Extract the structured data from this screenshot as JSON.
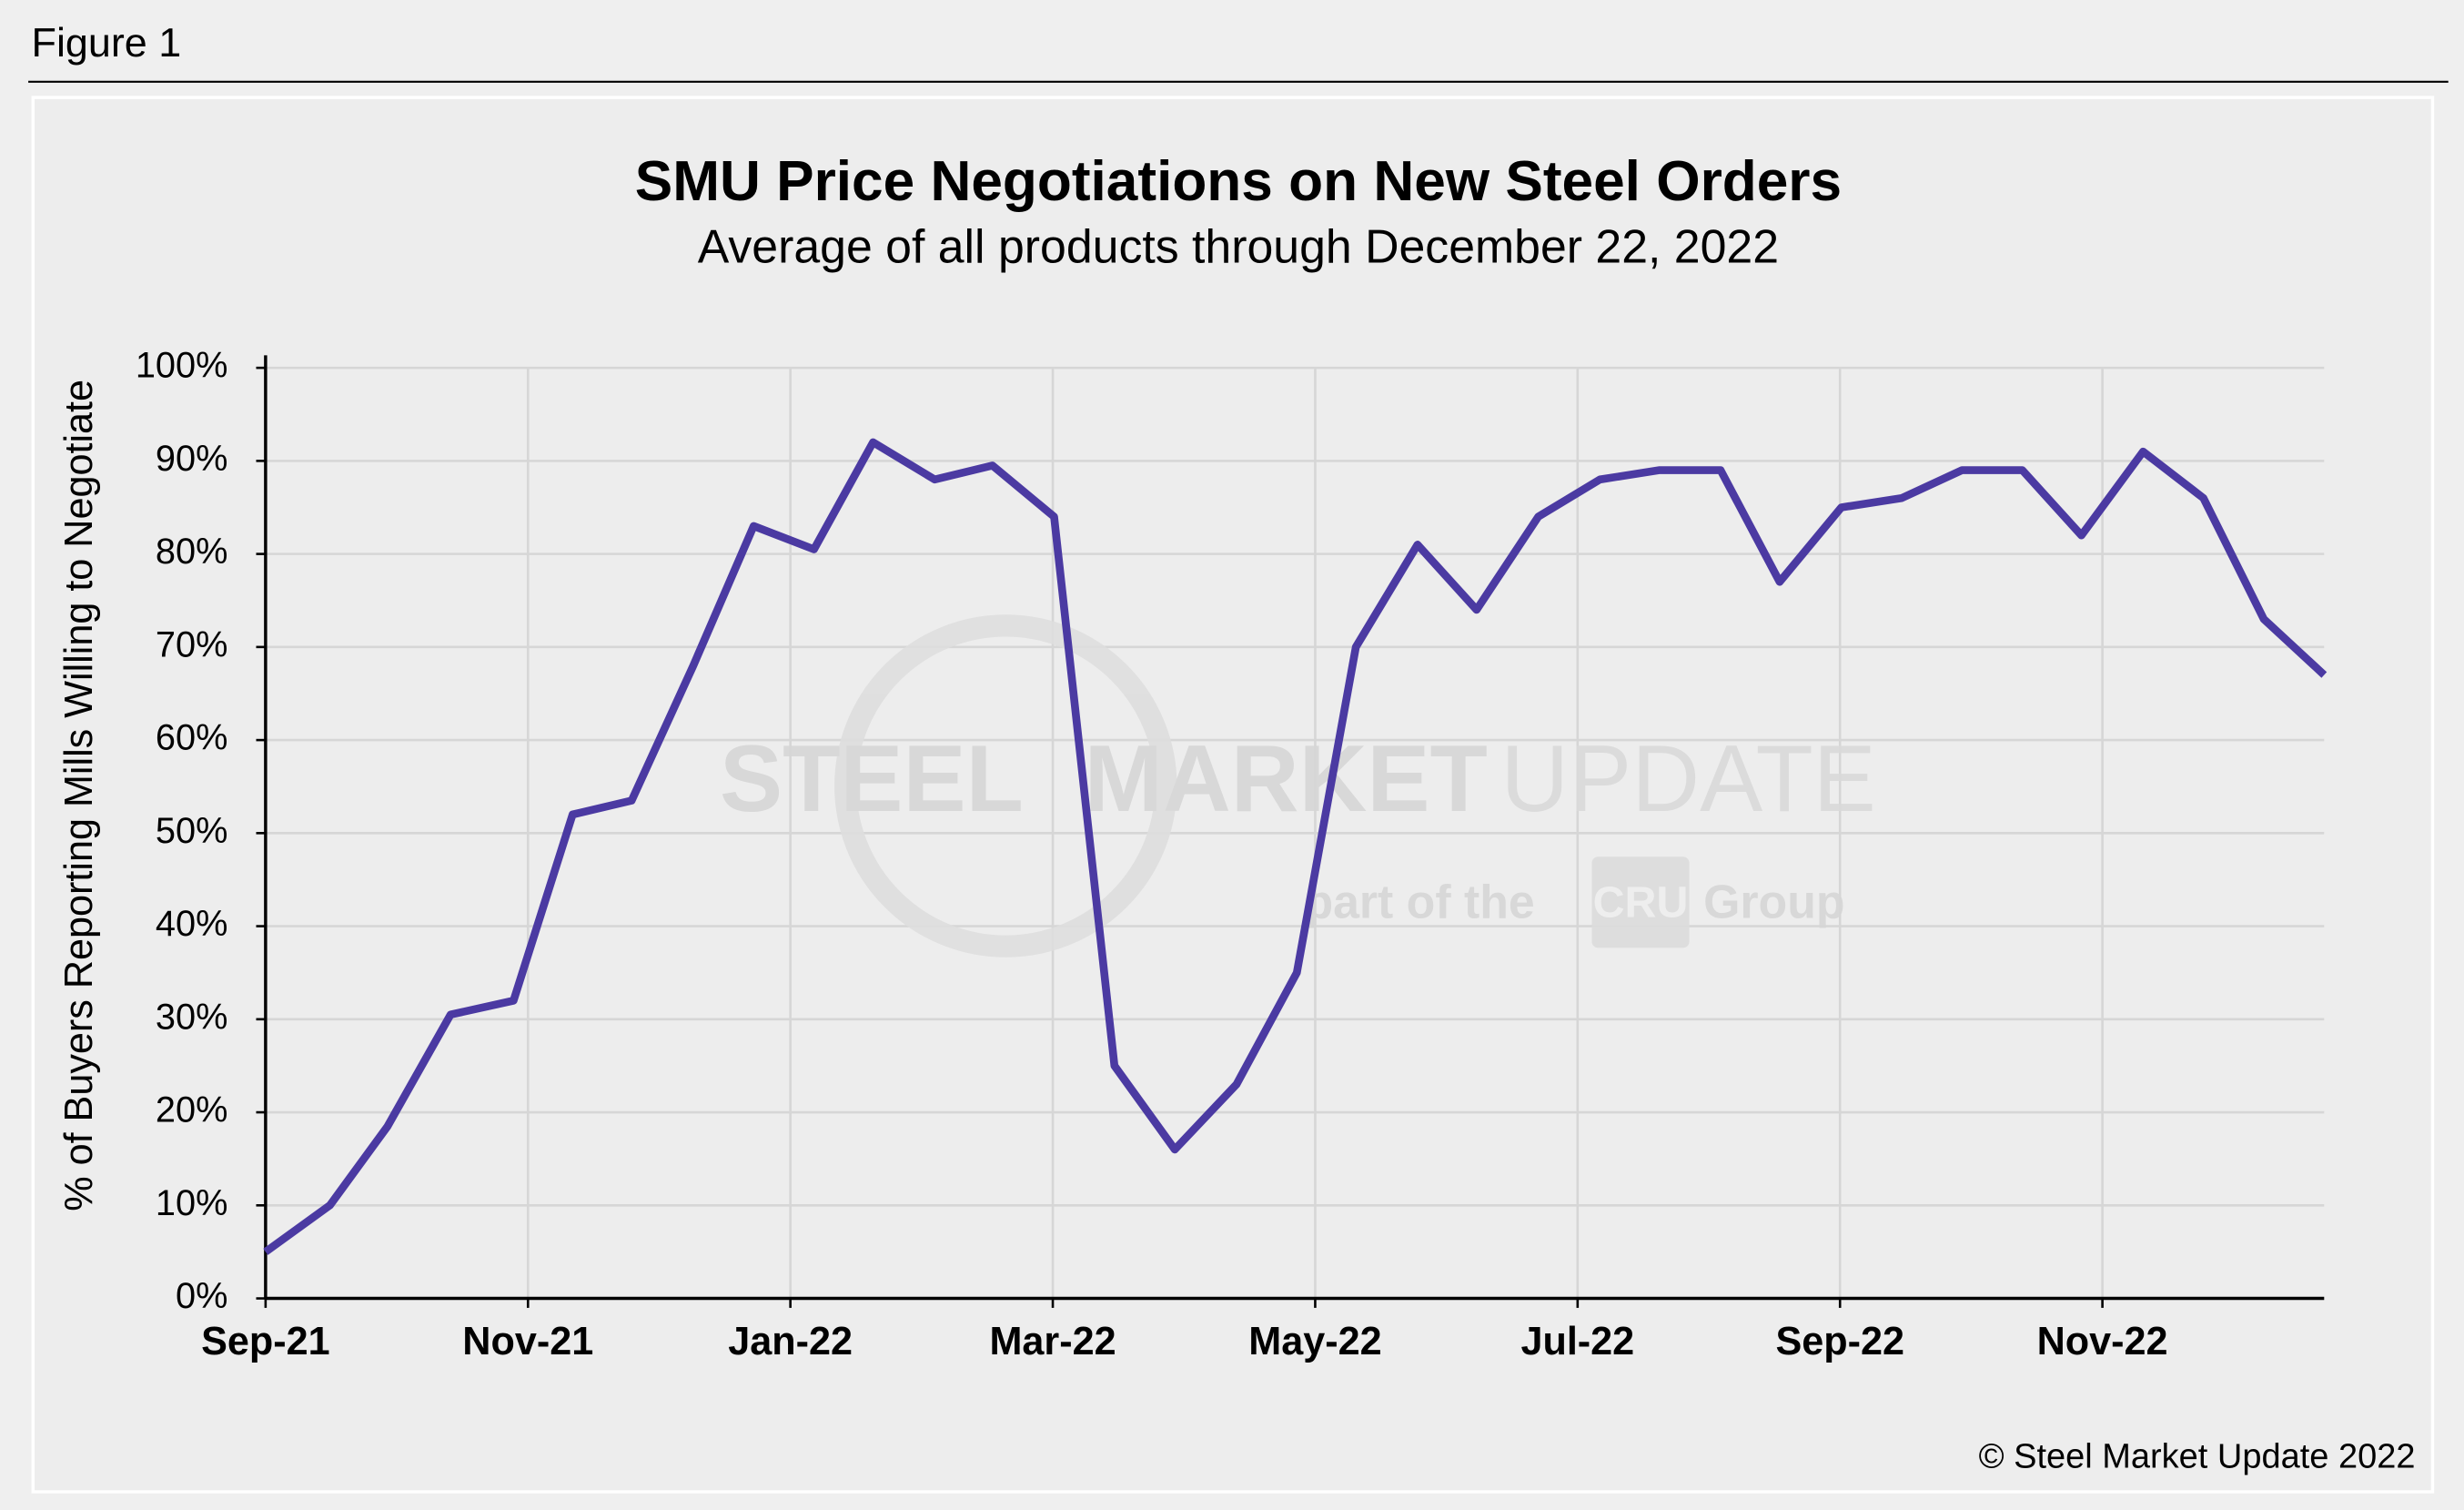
{
  "figure_label": "Figure 1",
  "chart_data": {
    "type": "line",
    "title": "SMU Price Negotiations on New Steel Orders",
    "subtitle": "Average of all products through December 22, 2022",
    "y_label": "% of Buyers Reporting Mills Willing to Negotiate",
    "watermark": [
      "STEEL",
      "MARKET",
      "UPDATE",
      "part of the",
      "CRU",
      "Group"
    ],
    "copyright": "© Steel Market Update 2022",
    "x": [
      0,
      0.49,
      0.93,
      1.41,
      1.89,
      2.34,
      2.79,
      3.26,
      3.72,
      4.18,
      4.63,
      5.1,
      5.54,
      6.01,
      6.47,
      6.93,
      7.4,
      7.86,
      8.31,
      8.78,
      9.23,
      9.7,
      10.17,
      10.62,
      11.09,
      11.54,
      12.01,
      12.47,
      12.93,
      13.39,
      13.84,
      14.31,
      14.77,
      15.23,
      15.69
    ],
    "series": [
      {
        "color": "#4b3aa2",
        "values": [
          5,
          10,
          18.5,
          30.5,
          32,
          52,
          53.5,
          68,
          83,
          80.5,
          92,
          88,
          89.5,
          84,
          25,
          16,
          23,
          35,
          70,
          81,
          74,
          84,
          88,
          89,
          89,
          77,
          85,
          86,
          89,
          89,
          82,
          91,
          86,
          73,
          67
        ]
      }
    ],
    "xlim": [
      0,
      15.69
    ],
    "xticks": [
      {
        "value": 0,
        "label": "Sep-21"
      },
      {
        "value": 2,
        "label": "Nov-21"
      },
      {
        "value": 4,
        "label": "Jan-22"
      },
      {
        "value": 6,
        "label": "Mar-22"
      },
      {
        "value": 8,
        "label": "May-22"
      },
      {
        "value": 10,
        "label": "Jul-22"
      },
      {
        "value": 12,
        "label": "Sep-22"
      },
      {
        "value": 14,
        "label": "Nov-22"
      }
    ],
    "ylim": [
      0,
      100
    ],
    "yticks": [
      {
        "value": 0,
        "label": "0%"
      },
      {
        "value": 10,
        "label": "10%"
      },
      {
        "value": 20,
        "label": "20%"
      },
      {
        "value": 30,
        "label": "30%"
      },
      {
        "value": 40,
        "label": "40%"
      },
      {
        "value": 50,
        "label": "50%"
      },
      {
        "value": 60,
        "label": "60%"
      },
      {
        "value": 70,
        "label": "70%"
      },
      {
        "value": 80,
        "label": "80%"
      },
      {
        "value": 90,
        "label": "90%"
      },
      {
        "value": 100,
        "label": "100%"
      }
    ],
    "grid": true
  }
}
